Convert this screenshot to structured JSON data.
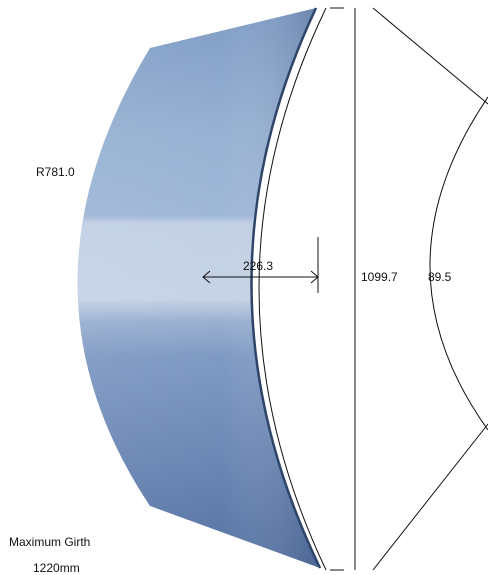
{
  "labels": {
    "radius": "R781.0",
    "depth": "226.3",
    "chord": "1099.7",
    "angle": "89.5",
    "girth_line1": "Maximum Girth",
    "girth_line2": "1220mm"
  },
  "colors": {
    "panel_dark": "#5a79a8",
    "panel_mid": "#8fa9cc",
    "panel_light": "#c3d1e4",
    "panel_edge": "#2e4468",
    "line": "#111111"
  }
}
